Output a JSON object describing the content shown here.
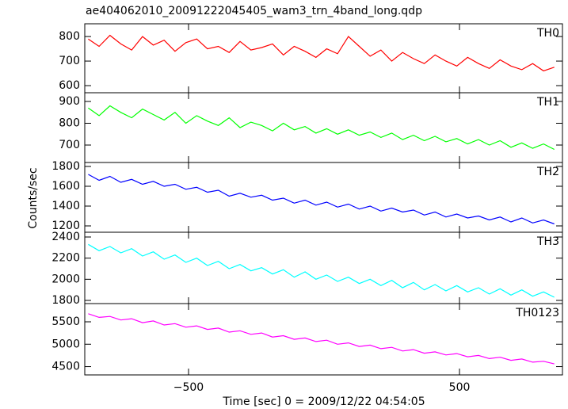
{
  "chart_data": {
    "type": "line",
    "title": "ae404062010_20091222045405_wam3_trn_4band_long.qdp",
    "xlabel": "Time [sec] 0 = 2009/12/22 04:54:05",
    "ylabel": "Counts/sec",
    "xlim": [
      -883,
      880
    ],
    "xticks": [
      {
        "value": -500,
        "label": "−500"
      },
      500
    ],
    "x": [
      -870,
      -830,
      -790,
      -750,
      -710,
      -670,
      -630,
      -590,
      -550,
      -510,
      -470,
      -430,
      -390,
      -350,
      -310,
      -270,
      -230,
      -190,
      -150,
      -110,
      -70,
      -30,
      10,
      50,
      90,
      130,
      170,
      210,
      250,
      290,
      330,
      370,
      410,
      450,
      490,
      530,
      570,
      610,
      650,
      690,
      730,
      770,
      810,
      850
    ],
    "series": [
      {
        "name": "TH0",
        "color": "#ff0000",
        "ylim": [
          571,
          852
        ],
        "yticks": [
          600,
          700,
          800
        ],
        "values": [
          790,
          760,
          805,
          770,
          745,
          800,
          765,
          785,
          740,
          775,
          790,
          750,
          760,
          735,
          780,
          745,
          755,
          770,
          725,
          760,
          740,
          715,
          750,
          730,
          800,
          760,
          720,
          745,
          700,
          735,
          710,
          690,
          725,
          700,
          680,
          715,
          690,
          670,
          705,
          680,
          665,
          690,
          660,
          675
        ]
      },
      {
        "name": "TH1",
        "color": "#00ff00",
        "ylim": [
          620,
          940
        ],
        "yticks": [
          700,
          800,
          900
        ],
        "values": [
          870,
          835,
          880,
          850,
          825,
          865,
          840,
          815,
          850,
          800,
          835,
          810,
          790,
          825,
          780,
          805,
          790,
          765,
          800,
          770,
          785,
          755,
          775,
          750,
          770,
          745,
          760,
          735,
          755,
          725,
          745,
          720,
          740,
          715,
          730,
          705,
          725,
          700,
          720,
          690,
          710,
          685,
          705,
          680
        ]
      },
      {
        "name": "TH2",
        "color": "#0000ff",
        "ylim": [
          1136,
          1840
        ],
        "yticks": [
          1200,
          1400,
          1600,
          1800
        ],
        "values": [
          1720,
          1660,
          1700,
          1640,
          1670,
          1620,
          1650,
          1600,
          1620,
          1570,
          1590,
          1540,
          1560,
          1500,
          1530,
          1490,
          1510,
          1460,
          1480,
          1430,
          1460,
          1410,
          1440,
          1390,
          1420,
          1370,
          1400,
          1350,
          1380,
          1340,
          1360,
          1310,
          1340,
          1290,
          1320,
          1280,
          1300,
          1260,
          1290,
          1240,
          1280,
          1230,
          1260,
          1220
        ]
      },
      {
        "name": "TH3",
        "color": "#00ffff",
        "ylim": [
          1770,
          2445
        ],
        "yticks": [
          1800,
          2000,
          2200,
          2400
        ],
        "values": [
          2330,
          2270,
          2310,
          2250,
          2290,
          2220,
          2260,
          2190,
          2230,
          2160,
          2200,
          2130,
          2170,
          2100,
          2140,
          2080,
          2110,
          2050,
          2090,
          2020,
          2070,
          2000,
          2040,
          1980,
          2020,
          1960,
          2000,
          1940,
          1990,
          1920,
          1970,
          1900,
          1950,
          1890,
          1940,
          1880,
          1920,
          1860,
          1910,
          1850,
          1900,
          1840,
          1880,
          1830
        ]
      },
      {
        "name": "TH0123",
        "color": "#ff00ff",
        "ylim": [
          4315,
          5907
        ],
        "yticks": [
          4500,
          5000,
          5500
        ],
        "values": [
          5680,
          5600,
          5620,
          5540,
          5570,
          5480,
          5520,
          5430,
          5460,
          5380,
          5410,
          5330,
          5360,
          5270,
          5300,
          5220,
          5250,
          5160,
          5190,
          5110,
          5140,
          5060,
          5090,
          5000,
          5030,
          4950,
          4980,
          4900,
          4930,
          4850,
          4880,
          4800,
          4830,
          4760,
          4790,
          4720,
          4750,
          4680,
          4710,
          4640,
          4670,
          4600,
          4620,
          4560
        ]
      }
    ]
  }
}
